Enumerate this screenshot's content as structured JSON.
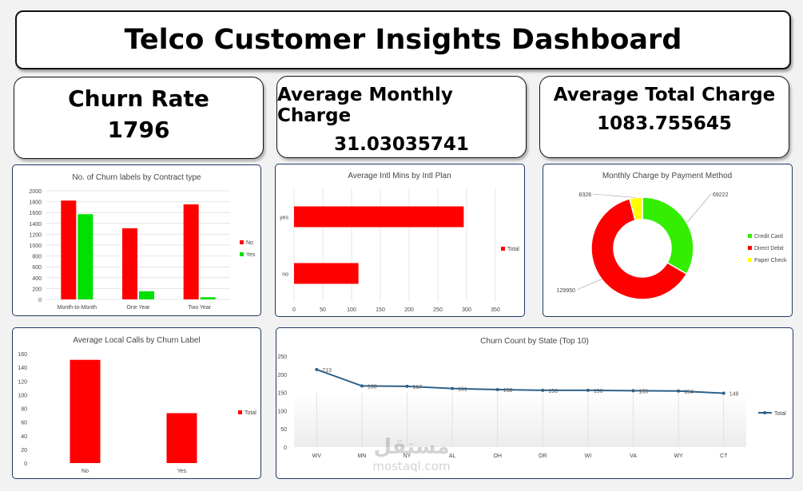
{
  "dashboard": {
    "title": "Telco Customer Insights Dashboard"
  },
  "kpis": [
    {
      "label": "Churn Rate",
      "value": "1796"
    },
    {
      "label": "Average Monthly Charge",
      "value": "31.03035741"
    },
    {
      "label": "Average Total Charge",
      "value": "1083.755645"
    }
  ],
  "watermark": {
    "line1": "مستقل",
    "line2": "mostaql.com"
  },
  "chart_data": [
    {
      "id": "contract",
      "type": "bar",
      "title": "No. of Churn labels by Contract type",
      "categories": [
        "Month-to-Month",
        "One Year",
        "Two Year"
      ],
      "series": [
        {
          "name": "No",
          "color": "#ff0000",
          "values": [
            1820,
            1310,
            1750
          ]
        },
        {
          "name": "Yes",
          "color": "#00e000",
          "values": [
            1570,
            150,
            40
          ]
        }
      ],
      "ylim": [
        0,
        2000
      ],
      "yticks": [
        0,
        200,
        400,
        600,
        800,
        1000,
        1200,
        1400,
        1600,
        1800,
        2000
      ],
      "legend": "right"
    },
    {
      "id": "intl",
      "type": "bar",
      "orientation": "horizontal",
      "title": "Average Intl Mins by Intl Plan",
      "categories": [
        "yes",
        "no"
      ],
      "series": [
        {
          "name": "Total",
          "color": "#ff0000",
          "values": [
            295,
            112
          ]
        }
      ],
      "xlim": [
        0,
        350
      ],
      "xticks": [
        0,
        50,
        100,
        150,
        200,
        250,
        300,
        350
      ],
      "legend": "right"
    },
    {
      "id": "payment",
      "type": "pie",
      "title": "Monthly Charge by Payment Method",
      "labels": [
        "Credit Card",
        "Direct Debit",
        "Paper Check"
      ],
      "values": [
        69222,
        129950,
        8328
      ],
      "value_labels": [
        "69222",
        "129950",
        "8328"
      ],
      "colors": [
        "#33ee00",
        "#ff0000",
        "#ffff00"
      ],
      "legend": "right"
    },
    {
      "id": "localcalls",
      "type": "bar",
      "title": "Average Local Calls by Churn Label",
      "categories": [
        "No",
        "Yes"
      ],
      "series": [
        {
          "name": "Total",
          "color": "#ff0000",
          "values": [
            151,
            73
          ]
        }
      ],
      "ylim": [
        0,
        160
      ],
      "yticks": [
        0,
        20,
        40,
        60,
        80,
        100,
        120,
        140,
        160
      ],
      "legend": "right"
    },
    {
      "id": "state",
      "type": "line",
      "title": "Churn Count by State (Top 10)",
      "categories": [
        "WV",
        "MN",
        "NY",
        "AL",
        "OH",
        "OR",
        "WI",
        "VA",
        "WY",
        "CT"
      ],
      "series": [
        {
          "name": "Total",
          "color": "#2e6088",
          "values": [
            213,
            168,
            167,
            161,
            158,
            156,
            156,
            155,
            154,
            148
          ],
          "labels": [
            "213",
            "168",
            "167",
            "161",
            "158",
            "156",
            "156",
            "155",
            "154",
            "148"
          ]
        }
      ],
      "ylim": [
        0,
        250
      ],
      "yticks": [
        0,
        50,
        100,
        150,
        200,
        250
      ],
      "legend": "right"
    }
  ]
}
